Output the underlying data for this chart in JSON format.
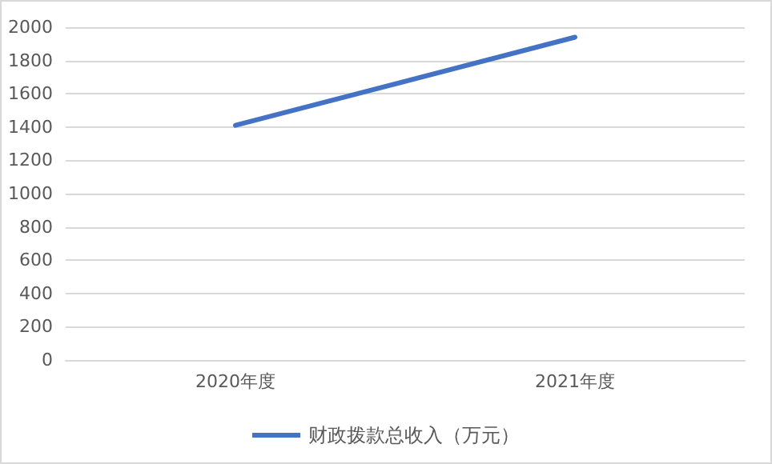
{
  "chart_data": {
    "type": "line",
    "categories": [
      "2020年度",
      "2021年度"
    ],
    "series": [
      {
        "name": "财政拨款总收入（万元）",
        "color": "#4472c4",
        "values": [
          1410,
          1940
        ]
      }
    ],
    "ylim": [
      0,
      2000
    ],
    "yticks": [
      0,
      200,
      400,
      600,
      800,
      1000,
      1200,
      1400,
      1600,
      1800,
      2000
    ],
    "grid": "y",
    "legend": "bottom",
    "marker": "none"
  }
}
